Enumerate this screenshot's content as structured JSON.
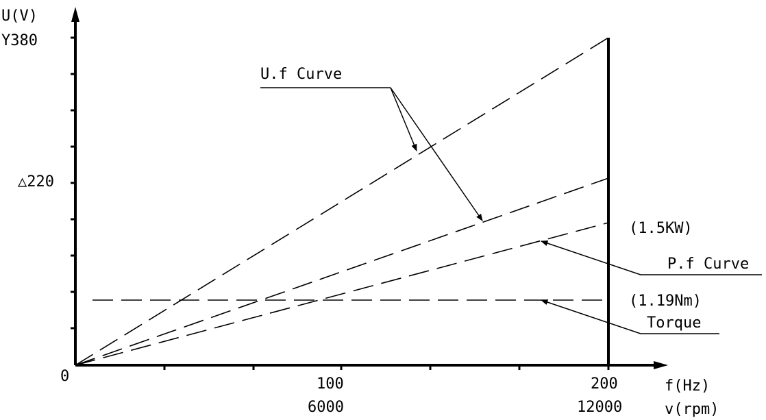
{
  "diagram": {
    "y_axis": {
      "label": "U(V)",
      "tick_top": "Y380",
      "tick_mid": "△220"
    },
    "origin_label": "0",
    "x_axis": {
      "label_hz": "f(Hz)",
      "label_rpm": "v(rpm)",
      "tick_100_hz": "100",
      "tick_100_rpm": "6000",
      "tick_200_hz": "200",
      "tick_200_rpm": "12000"
    },
    "annotations": {
      "uf_curve": "U.f Curve",
      "pf_curve": "P.f Curve",
      "power": "(1.5KW)",
      "torque_value": "(1.19Nm)",
      "torque": "Torque"
    }
  }
}
